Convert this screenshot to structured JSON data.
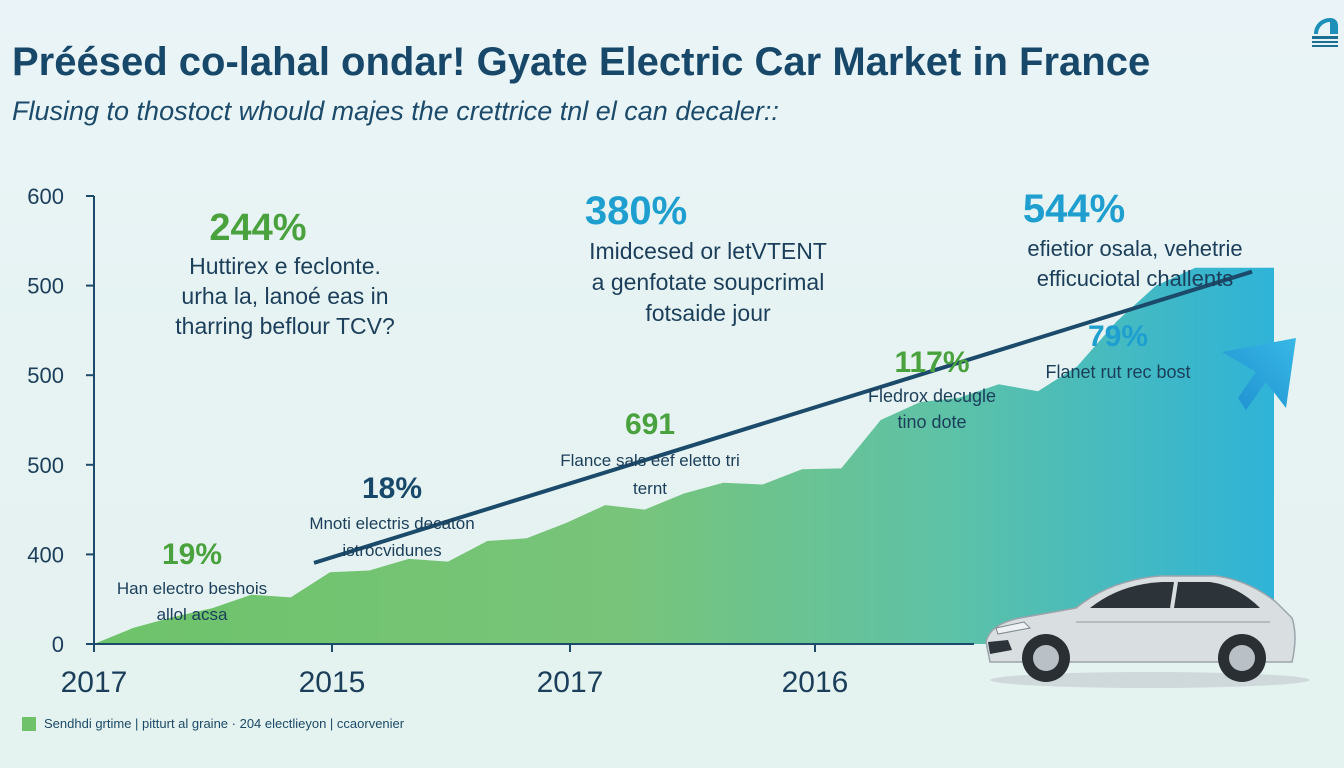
{
  "title": "Préésed co-lahal ondar! Gyate Electric Car Market in France",
  "subtitle": "Flusing to thostoct whould majes the crettrice tnl el can decaler::",
  "legend": {
    "label": "Sendhdi grtime | pitturt al graine · 204 electlieyon | ccaorvenier"
  },
  "colors": {
    "title": "#17486a",
    "green_area": "#6ec36a",
    "teal_area": "#2fb3d8",
    "trend_line": "#1b4a6a",
    "green_text": "#4aa23e",
    "teal_text": "#1e9fd0",
    "navy_text": "#17486a"
  },
  "icons": {
    "logo": "logo-icon",
    "car": "car-illustration",
    "arrow": "trend-arrow-icon"
  },
  "chart_data": {
    "type": "area",
    "y_tick_labels": [
      "600",
      "500",
      "500",
      "500",
      "400",
      "0"
    ],
    "x_tick_labels": [
      "2017",
      "2015",
      "2017",
      "2016"
    ],
    "series": [
      {
        "values": [
          0,
          18,
          30,
          40,
          55,
          52,
          80,
          82,
          95,
          92,
          115,
          118,
          135,
          155,
          150,
          168,
          180,
          178,
          195,
          196,
          250,
          270,
          275,
          290,
          282,
          310,
          360,
          400,
          420,
          420,
          420
        ]
      }
    ],
    "trend_line": {
      "start": 0,
      "end": 420
    },
    "annotations": [
      {
        "value": "244%",
        "lines": [
          "Huttirex e feclonte.",
          "urha la, lanoé eas in",
          "tharring beflour TCV?"
        ],
        "color": "green"
      },
      {
        "value": "380%",
        "lines": [
          "Imidcesed or letVTENT",
          "a genfotate soupcrimal",
          "fotsaide jour"
        ],
        "color": "teal"
      },
      {
        "value": "544%",
        "lines": [
          "efietior osala, vehetrie",
          "efficuciotal challents"
        ],
        "color": "teal"
      },
      {
        "value": "79%",
        "lines": [
          "Flanet rut rec bost"
        ],
        "color": "teal"
      },
      {
        "value": "117%",
        "lines": [
          "Fledrox decugle",
          "tino dote"
        ],
        "color": "green"
      },
      {
        "value": "691",
        "lines": [
          "Flance sals eef eletto tri",
          "ternt"
        ],
        "color": "green"
      },
      {
        "value": "18%",
        "lines": [
          "Mnoti electris decaton",
          "istrocvidunes"
        ],
        "color": "navy"
      },
      {
        "value": "19%",
        "lines": [
          "Han electro beshois",
          "allol acsa"
        ],
        "color": "green"
      }
    ]
  }
}
